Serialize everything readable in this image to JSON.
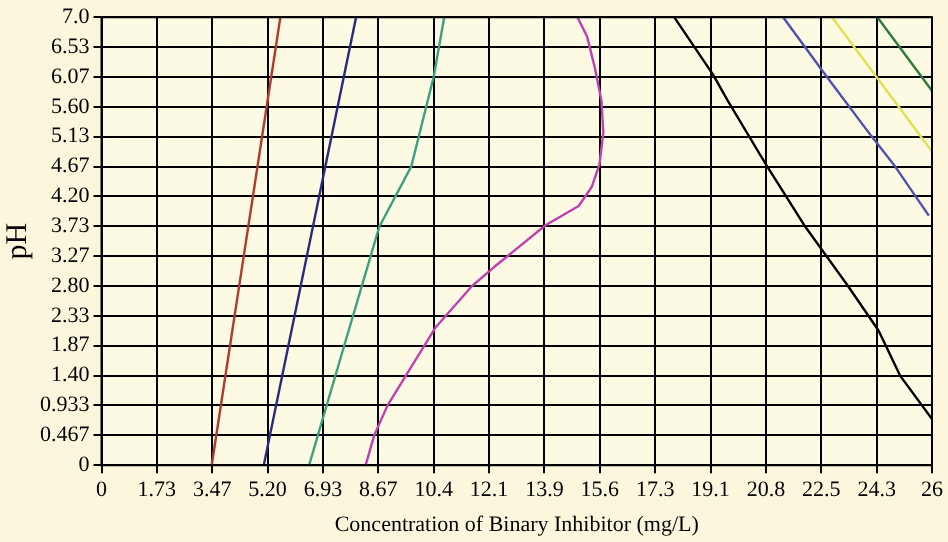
{
  "chart_data": {
    "type": "line",
    "xlabel": "Concentration of Binary Inhibitor (mg/L)",
    "ylabel": "pH",
    "xlim": [
      0,
      26
    ],
    "ylim": [
      0,
      7
    ],
    "xticks": [
      0,
      {
        "value": 1.733,
        "label": "1.73"
      },
      {
        "value": 3.467,
        "label": "3.47"
      },
      {
        "value": 5.2,
        "label": "5.20"
      },
      {
        "value": 6.933,
        "label": "6.93"
      },
      {
        "value": 8.667,
        "label": "8.67"
      },
      10.4,
      {
        "value": 12.133,
        "label": "12.1"
      },
      {
        "value": 13.867,
        "label": "13.9"
      },
      15.6,
      {
        "value": 17.333,
        "label": "17.3"
      },
      {
        "value": 19.067,
        "label": "19.1"
      },
      20.8,
      {
        "value": 22.533,
        "label": "22.5"
      },
      {
        "value": 24.267,
        "label": "24.3"
      },
      26
    ],
    "yticks": [
      0,
      {
        "value": 0.467,
        "label": "0.467"
      },
      {
        "value": 0.933,
        "label": "0.933"
      },
      {
        "value": 1.4,
        "label": "1.40"
      },
      {
        "value": 1.867,
        "label": "1.87"
      },
      {
        "value": 2.333,
        "label": "2.33"
      },
      {
        "value": 2.8,
        "label": "2.80"
      },
      {
        "value": 3.267,
        "label": "3.27"
      },
      {
        "value": 3.733,
        "label": "3.73"
      },
      {
        "value": 4.2,
        "label": "4.20"
      },
      {
        "value": 4.667,
        "label": "4.67"
      },
      {
        "value": 5.133,
        "label": "5.13"
      },
      {
        "value": 5.6,
        "label": "5.60"
      },
      {
        "value": 6.067,
        "label": "6.07"
      },
      {
        "value": 6.533,
        "label": "6.53"
      },
      {
        "value": 7,
        "label": "7.0"
      }
    ],
    "grid": true,
    "legend": false,
    "marker": "none",
    "line_style": "solid",
    "series": [
      {
        "color": "#b03a2e",
        "x": [
          3.45,
          5.6
        ],
        "values": [
          0,
          7
        ]
      },
      {
        "color": "#2a2a80",
        "x": [
          5.08,
          7.97
        ],
        "values": [
          0,
          7
        ]
      },
      {
        "color": "#3aa080",
        "x": [
          6.5,
          7.6,
          8.7,
          9.7,
          10.4,
          10.73
        ],
        "values": [
          0,
          1.87,
          3.73,
          4.67,
          6.07,
          7
        ]
      },
      {
        "color": "#c040b0",
        "x": [
          8.27,
          8.54,
          8.95,
          10.47,
          11.6,
          12.3,
          13.9,
          14.94,
          15.35,
          15.59,
          15.71,
          15.65,
          15.45,
          15.2,
          14.9
        ],
        "values": [
          0,
          0.47,
          0.93,
          2.16,
          2.8,
          3.1,
          3.75,
          4.05,
          4.35,
          4.7,
          5.2,
          5.7,
          6.2,
          6.7,
          7
        ]
      },
      {
        "color": "#000000",
        "x": [
          17.93,
          19.15,
          19.6,
          20.8,
          22.0,
          23.37,
          24.33,
          25.0,
          26.0
        ],
        "values": [
          7,
          6.1,
          5.7,
          4.7,
          3.75,
          2.8,
          2.1,
          1.4,
          0.72
        ]
      },
      {
        "color": "#5050b0",
        "x": [
          21.34,
          22.66,
          24.09,
          24.8,
          25.9
        ],
        "values": [
          7,
          6.1,
          5.15,
          4.7,
          3.9
        ]
      },
      {
        "color": "#e0e050",
        "x": [
          22.87,
          26
        ],
        "values": [
          7,
          4.9
        ]
      },
      {
        "color": "#2e7a3a",
        "x": [
          24.29,
          26
        ],
        "values": [
          7,
          5.85
        ]
      }
    ]
  }
}
